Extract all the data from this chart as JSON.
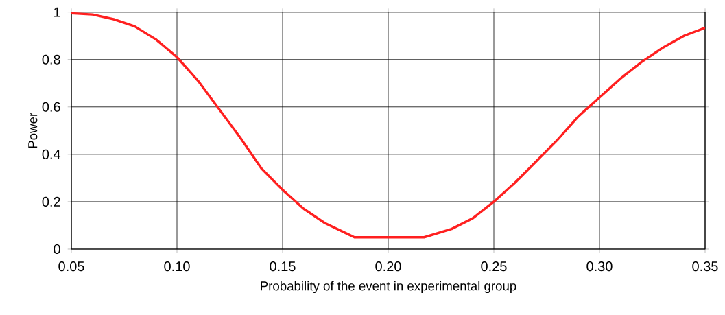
{
  "chart_data": {
    "type": "line",
    "xlabel": "Probability of the event in experimental group",
    "ylabel": "Power",
    "x": [
      0.05,
      0.06,
      0.07,
      0.08,
      0.09,
      0.1,
      0.11,
      0.12,
      0.13,
      0.14,
      0.15,
      0.16,
      0.17,
      0.184,
      0.217,
      0.23,
      0.24,
      0.25,
      0.26,
      0.27,
      0.28,
      0.29,
      0.3,
      0.31,
      0.32,
      0.33,
      0.34,
      0.35
    ],
    "series": [
      {
        "color": "#ff2020",
        "values": [
          0.995,
          0.99,
          0.97,
          0.94,
          0.885,
          0.81,
          0.71,
          0.59,
          0.47,
          0.34,
          0.25,
          0.17,
          0.11,
          0.05,
          0.05,
          0.085,
          0.13,
          0.2,
          0.28,
          0.37,
          0.46,
          0.56,
          0.64,
          0.72,
          0.79,
          0.85,
          0.9,
          0.934
        ]
      }
    ],
    "xlim": [
      0.05,
      0.35
    ],
    "ylim": [
      0,
      1
    ],
    "xticks": [
      {
        "value": 0.05,
        "label": "0.05"
      },
      {
        "value": 0.1,
        "label": "0.10"
      },
      {
        "value": 0.15,
        "label": "0.15"
      },
      {
        "value": 0.2,
        "label": "0.20"
      },
      {
        "value": 0.25,
        "label": "0.25"
      },
      {
        "value": 0.3,
        "label": "0.30"
      },
      {
        "value": 0.35,
        "label": "0.35"
      }
    ],
    "yticks": [
      0,
      0.2,
      0.4,
      0.6,
      0.8,
      1
    ],
    "grid": true,
    "marker": "none",
    "line_style": "solid"
  }
}
